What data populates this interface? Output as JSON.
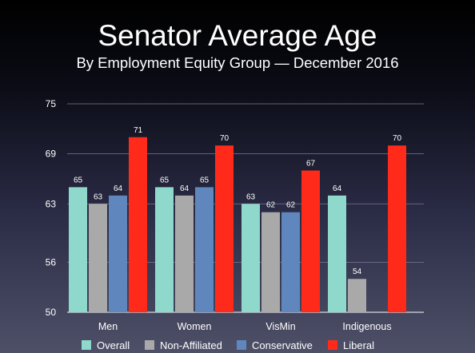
{
  "chart_data": {
    "type": "bar",
    "title": "Senator Average Age",
    "subtitle": "By Employment Equity Group — December 2016",
    "xlabel": "",
    "ylabel": "",
    "ylim": [
      50,
      75
    ],
    "yticks": [
      50,
      56,
      63,
      69,
      75
    ],
    "grid": true,
    "legend_position": "bottom",
    "categories": [
      "Men",
      "Women",
      "VisMin",
      "Indigenous"
    ],
    "series": [
      {
        "name": "Overall",
        "color": "#8fd8cc",
        "values": [
          65,
          65,
          63,
          64
        ]
      },
      {
        "name": "Non-Affiliated",
        "color": "#a9a9a9",
        "values": [
          63,
          64,
          62,
          54
        ]
      },
      {
        "name": "Conservative",
        "color": "#5f86bd",
        "values": [
          64,
          65,
          62,
          null
        ]
      },
      {
        "name": "Liberal",
        "color": "#ff2a1a",
        "values": [
          71,
          70,
          67,
          70
        ]
      }
    ]
  }
}
